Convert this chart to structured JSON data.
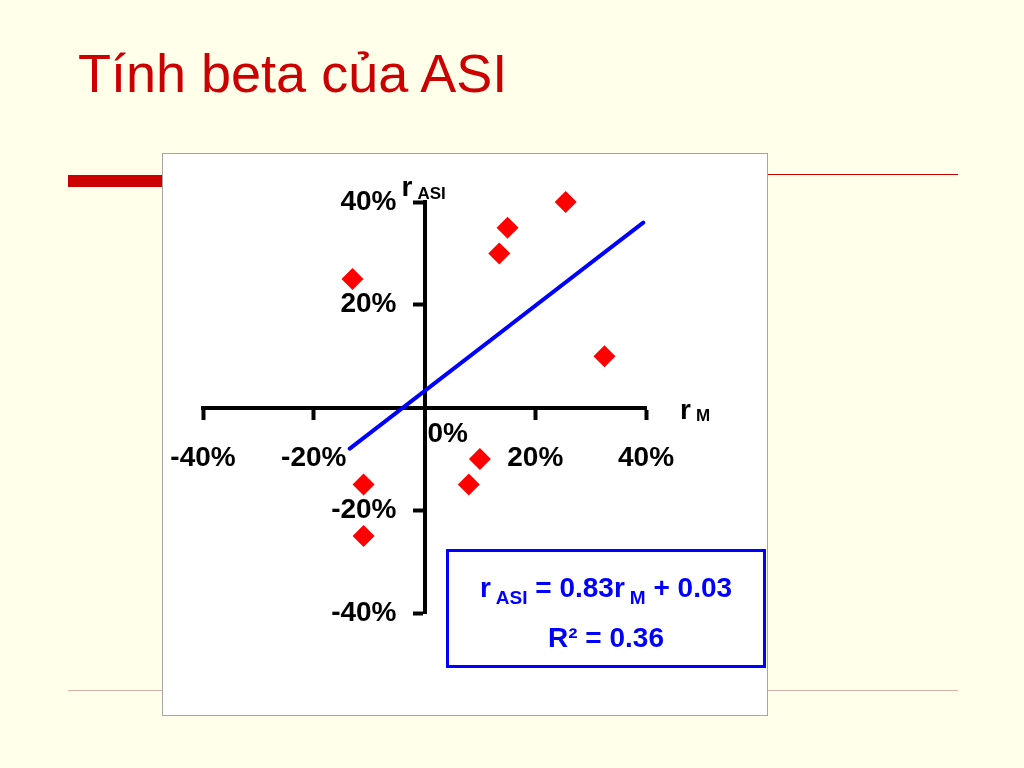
{
  "chart_data": {
    "type": "scatter",
    "title": "Tính beta của ASI",
    "xlabel": "r$_{M}$",
    "ylabel": "r$_{ASI}$",
    "annotations": [
      "0%",
      "r$_{ASI}$ = 0.83r$_{M}$ + 0.03",
      "R² = 0.36"
    ],
    "series": [
      {
        "type": "scatter",
        "color": "#ff0000",
        "marker": "diamond",
        "x": [
          -13,
          25.5,
          15,
          13.5,
          32.5,
          10,
          8,
          -11,
          -11
        ],
        "values": [
          25,
          40,
          35,
          30,
          10,
          -10,
          -15,
          -15,
          -25
        ]
      },
      {
        "type": "line",
        "color": "#0000ff",
        "marker": "none",
        "x": [
          -13.5,
          39.5
        ],
        "values": [
          -8,
          36
        ]
      }
    ],
    "xlim": [
      -40,
      40
    ],
    "ylim": [
      -40,
      40
    ],
    "xticks": [
      {
        "value": -40,
        "label": "-40%"
      },
      {
        "value": -20,
        "label": "-20%"
      },
      {
        "value": 20,
        "label": "20%"
      },
      {
        "value": 40,
        "label": "40%"
      }
    ],
    "yticks": [
      {
        "value": -40,
        "label": "-40%"
      },
      {
        "value": -20,
        "label": "-20%"
      },
      {
        "value": 20,
        "label": "20%"
      },
      {
        "value": 40,
        "label": "40%"
      }
    ]
  }
}
